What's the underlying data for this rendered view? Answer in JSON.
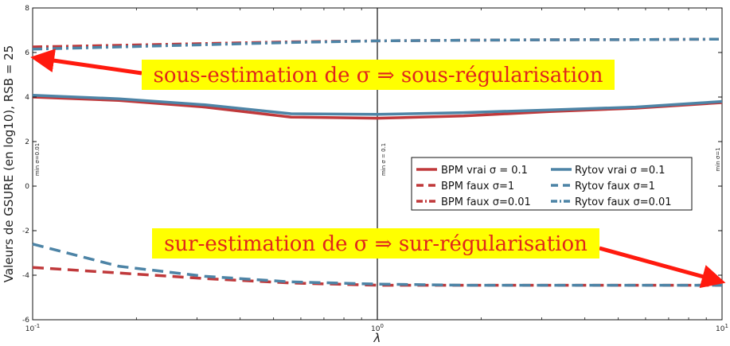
{
  "chart_data": {
    "type": "line",
    "title": "",
    "xlabel": "λ",
    "ylabel": "Valeurs de GSURE (en log10), RSB = 25",
    "xscale": "log",
    "xlim": [
      0.1,
      10
    ],
    "ylim": [
      -6,
      8
    ],
    "x_ticks": [
      {
        "value": 0.1,
        "base": "10",
        "exp": "-1"
      },
      {
        "value": 1,
        "base": "10",
        "exp": "0"
      },
      {
        "value": 10,
        "base": "10",
        "exp": "1"
      }
    ],
    "y_ticks": [
      -6,
      -4,
      -2,
      0,
      2,
      4,
      6,
      8
    ],
    "grid": false,
    "x": [
      0.1,
      0.178,
      0.316,
      0.562,
      1.0,
      1.78,
      3.16,
      5.62,
      10.0
    ],
    "series": [
      {
        "name": "BPM vrai σ = 0.1",
        "color": "#c0393b",
        "style": "solid",
        "values": [
          4.0,
          3.85,
          3.55,
          3.1,
          3.05,
          3.15,
          3.35,
          3.5,
          3.75
        ]
      },
      {
        "name": "BPM faux σ=1",
        "color": "#c0393b",
        "style": "dashed",
        "values": [
          -3.65,
          -3.9,
          -4.15,
          -4.35,
          -4.45,
          -4.45,
          -4.45,
          -4.45,
          -4.45
        ]
      },
      {
        "name": "BPM faux σ=0.01",
        "color": "#c0393b",
        "style": "dashdot",
        "values": [
          6.25,
          6.32,
          6.4,
          6.48,
          6.52,
          6.55,
          6.57,
          6.58,
          6.6
        ]
      },
      {
        "name": "Rytov vrai σ =0.1",
        "color": "#4d84a6",
        "style": "solid",
        "values": [
          4.08,
          3.92,
          3.65,
          3.25,
          3.22,
          3.3,
          3.42,
          3.55,
          3.8
        ]
      },
      {
        "name": "Rytov faux σ=1",
        "color": "#4d84a6",
        "style": "dashed",
        "values": [
          -2.6,
          -3.6,
          -4.05,
          -4.3,
          -4.4,
          -4.45,
          -4.45,
          -4.45,
          -4.45
        ]
      },
      {
        "name": "Rytov faux σ=0.01",
        "color": "#4d84a6",
        "style": "dashdot",
        "values": [
          6.15,
          6.25,
          6.35,
          6.45,
          6.52,
          6.55,
          6.57,
          6.58,
          6.6
        ]
      }
    ],
    "vlines": [
      {
        "x": 1.0,
        "label": "min σ = 0.1",
        "at_y": 1.2
      },
      {
        "x": 0.1,
        "label": "min σ=0.01",
        "at_y": 1.2
      },
      {
        "x": 10.0,
        "label": "min σ=1",
        "at_y": 1.2
      }
    ],
    "legend": {
      "placement": "center-right",
      "columns": 2
    },
    "annotations": [
      {
        "text": "sous-estimation de σ ⇒ sous-régularisation",
        "arrow_to": [
          0.1,
          6.0
        ],
        "highlight": "#ffff00"
      },
      {
        "text": "sur-estimation de σ ⇒ sur-régularisation",
        "arrow_to": [
          10.0,
          -4.2
        ],
        "highlight": "#ffff00"
      }
    ]
  }
}
